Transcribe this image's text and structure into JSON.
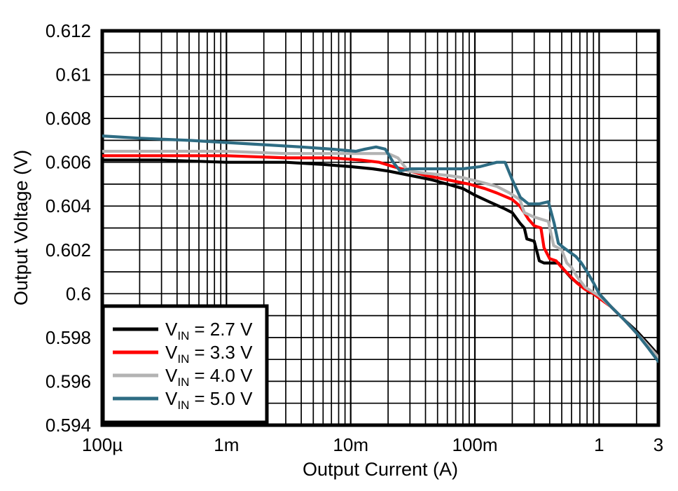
{
  "chart_data": {
    "type": "line",
    "title": "",
    "xlabel": "Output Current (A)",
    "ylabel": "Output Voltage (V)",
    "x_scale": "log",
    "xlim": [
      0.0001,
      3
    ],
    "ylim": [
      0.594,
      0.612
    ],
    "y_grid_step": 0.001,
    "grid": true,
    "grid_color": "#000000",
    "frame_color": "#000000",
    "legend_position": "bottom-left",
    "x_ticks": [
      {
        "value": 0.0001,
        "label": "100µ"
      },
      {
        "value": 0.001,
        "label": "1m"
      },
      {
        "value": 0.01,
        "label": "10m"
      },
      {
        "value": 0.1,
        "label": "100m"
      },
      {
        "value": 1,
        "label": "1"
      },
      {
        "value": 3,
        "label": "3"
      }
    ],
    "y_ticks": [
      {
        "value": 0.594,
        "label": "0.594"
      },
      {
        "value": 0.596,
        "label": "0.596"
      },
      {
        "value": 0.598,
        "label": "0.598"
      },
      {
        "value": 0.6,
        "label": "0.6"
      },
      {
        "value": 0.602,
        "label": "0.602"
      },
      {
        "value": 0.604,
        "label": "0.604"
      },
      {
        "value": 0.606,
        "label": "0.606"
      },
      {
        "value": 0.608,
        "label": "0.608"
      },
      {
        "value": 0.61,
        "label": "0.61"
      },
      {
        "value": 0.612,
        "label": "0.612"
      }
    ],
    "series": [
      {
        "id": "vin-2.7",
        "name": "VIN = 2.7 V",
        "legend": {
          "sym": "V",
          "sub": "IN",
          "rest": "= 2.7 V"
        },
        "color": "#000000",
        "points": [
          [
            0.0001,
            0.6061
          ],
          [
            0.0003,
            0.6061
          ],
          [
            0.001,
            0.606
          ],
          [
            0.003,
            0.606
          ],
          [
            0.006,
            0.6059
          ],
          [
            0.01,
            0.6058
          ],
          [
            0.015,
            0.6057
          ],
          [
            0.02,
            0.6056
          ],
          [
            0.03,
            0.6054
          ],
          [
            0.045,
            0.6052
          ],
          [
            0.06,
            0.605
          ],
          [
            0.08,
            0.6048
          ],
          [
            0.1,
            0.6045
          ],
          [
            0.13,
            0.6042
          ],
          [
            0.17,
            0.6039
          ],
          [
            0.2,
            0.6037
          ],
          [
            0.232,
            0.6032
          ],
          [
            0.25,
            0.603
          ],
          [
            0.262,
            0.6025
          ],
          [
            0.3,
            0.6024
          ],
          [
            0.33,
            0.6015
          ],
          [
            0.36,
            0.6014
          ],
          [
            0.47,
            0.6014
          ],
          [
            0.52,
            0.6011
          ],
          [
            0.6,
            0.6007
          ],
          [
            0.7,
            0.6004
          ],
          [
            0.82,
            0.6001
          ],
          [
            1.0,
            0.5999
          ],
          [
            1.25,
            0.5994
          ],
          [
            1.6,
            0.5988
          ],
          [
            2.0,
            0.5983
          ],
          [
            2.5,
            0.5977
          ],
          [
            3.0,
            0.5972
          ]
        ]
      },
      {
        "id": "vin-3.3",
        "name": "VIN = 3.3 V",
        "legend": {
          "sym": "V",
          "sub": "IN",
          "rest": "= 3.3 V"
        },
        "color": "#ff0000",
        "points": [
          [
            0.0001,
            0.6063
          ],
          [
            0.0003,
            0.6063
          ],
          [
            0.001,
            0.6063
          ],
          [
            0.003,
            0.6062
          ],
          [
            0.007,
            0.6062
          ],
          [
            0.012,
            0.6061
          ],
          [
            0.017,
            0.606
          ],
          [
            0.022,
            0.6058
          ],
          [
            0.03,
            0.6056
          ],
          [
            0.04,
            0.6054
          ],
          [
            0.06,
            0.6052
          ],
          [
            0.09,
            0.605
          ],
          [
            0.12,
            0.6048
          ],
          [
            0.15,
            0.6046
          ],
          [
            0.2,
            0.6043
          ],
          [
            0.23,
            0.604
          ],
          [
            0.25,
            0.6037
          ],
          [
            0.27,
            0.6034
          ],
          [
            0.3,
            0.6031
          ],
          [
            0.34,
            0.603
          ],
          [
            0.36,
            0.6021
          ],
          [
            0.4,
            0.6016
          ],
          [
            0.45,
            0.6015
          ],
          [
            0.5,
            0.6012
          ],
          [
            0.585,
            0.6008
          ],
          [
            0.66,
            0.6005
          ],
          [
            0.77,
            0.6002
          ],
          [
            0.9,
            0.6
          ],
          [
            1.0,
            0.5998
          ],
          [
            1.25,
            0.5994
          ],
          [
            1.6,
            0.5988
          ],
          [
            2.0,
            0.5982
          ],
          [
            2.5,
            0.5976
          ],
          [
            3.0,
            0.5971
          ]
        ]
      },
      {
        "id": "vin-4.0",
        "name": "VIN = 4.0 V",
        "legend": {
          "sym": "V",
          "sub": "IN",
          "rest": "= 4.0 V"
        },
        "color": "#b3b3b3",
        "points": [
          [
            0.0001,
            0.6065
          ],
          [
            0.001,
            0.6065
          ],
          [
            0.003,
            0.6064
          ],
          [
            0.008,
            0.6064
          ],
          [
            0.013,
            0.6064
          ],
          [
            0.02,
            0.6064
          ],
          [
            0.024,
            0.6062
          ],
          [
            0.029,
            0.6056
          ],
          [
            0.04,
            0.6055
          ],
          [
            0.06,
            0.6054
          ],
          [
            0.08,
            0.6053
          ],
          [
            0.11,
            0.6051
          ],
          [
            0.15,
            0.6049
          ],
          [
            0.19,
            0.6046
          ],
          [
            0.23,
            0.6043
          ],
          [
            0.25,
            0.6037
          ],
          [
            0.3,
            0.6035
          ],
          [
            0.39,
            0.6033
          ],
          [
            0.43,
            0.6022
          ],
          [
            0.5,
            0.602
          ],
          [
            0.55,
            0.6014
          ],
          [
            0.6,
            0.6012
          ],
          [
            0.66,
            0.6008
          ],
          [
            0.77,
            0.6003
          ],
          [
            0.88,
            0.6001
          ],
          [
            1.0,
            0.5999
          ],
          [
            1.25,
            0.5994
          ],
          [
            1.6,
            0.5988
          ],
          [
            2.0,
            0.5982
          ],
          [
            2.5,
            0.5976
          ],
          [
            3.0,
            0.5971
          ]
        ]
      },
      {
        "id": "vin-5.0",
        "name": "VIN = 5.0 V",
        "legend": {
          "sym": "V",
          "sub": "IN",
          "rest": "= 5.0 V"
        },
        "color": "#2e6c83",
        "points": [
          [
            0.0001,
            0.6072
          ],
          [
            0.0002,
            0.6071
          ],
          [
            0.0005,
            0.607
          ],
          [
            0.001,
            0.6069
          ],
          [
            0.002,
            0.6068
          ],
          [
            0.004,
            0.6067
          ],
          [
            0.007,
            0.6066
          ],
          [
            0.011,
            0.6065
          ],
          [
            0.013,
            0.6066
          ],
          [
            0.016,
            0.6067
          ],
          [
            0.019,
            0.6066
          ],
          [
            0.022,
            0.606
          ],
          [
            0.025,
            0.6056
          ],
          [
            0.03,
            0.6057
          ],
          [
            0.05,
            0.6057
          ],
          [
            0.08,
            0.6057
          ],
          [
            0.11,
            0.6058
          ],
          [
            0.15,
            0.606
          ],
          [
            0.175,
            0.606
          ],
          [
            0.2,
            0.6052
          ],
          [
            0.232,
            0.6044
          ],
          [
            0.27,
            0.6041
          ],
          [
            0.33,
            0.6041
          ],
          [
            0.39,
            0.6042
          ],
          [
            0.435,
            0.6032
          ],
          [
            0.47,
            0.6023
          ],
          [
            0.52,
            0.6021
          ],
          [
            0.58,
            0.6019
          ],
          [
            0.65,
            0.6017
          ],
          [
            0.72,
            0.6014
          ],
          [
            0.8,
            0.601
          ],
          [
            0.9,
            0.6005
          ],
          [
            1.0,
            0.6
          ],
          [
            1.25,
            0.5994
          ],
          [
            1.6,
            0.5988
          ],
          [
            2.0,
            0.5982
          ],
          [
            2.5,
            0.5975
          ],
          [
            3.0,
            0.5969
          ]
        ]
      }
    ]
  }
}
